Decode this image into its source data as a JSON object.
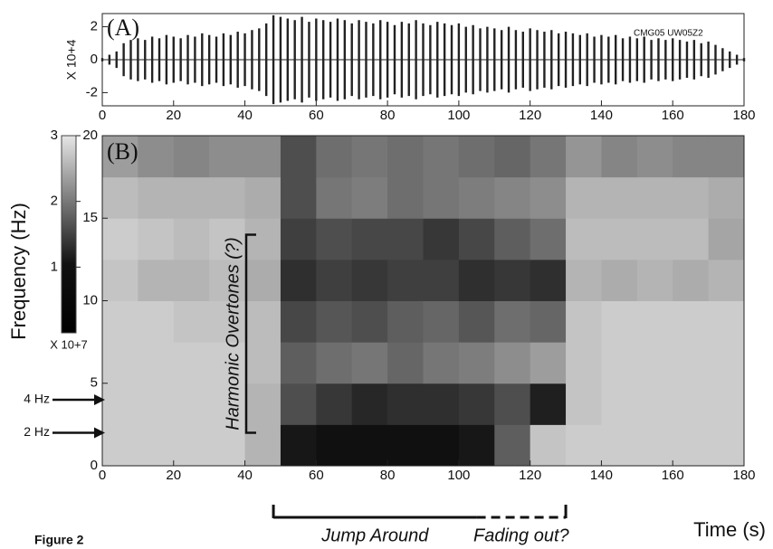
{
  "figure_label": "Figure 2",
  "chart_data": [
    {
      "type": "waveform",
      "panel_label": "(A)",
      "station": "CMG05  UW05Z2",
      "ylabel": "X 10+4",
      "x": [
        0,
        2,
        4,
        6,
        8,
        10,
        12,
        14,
        16,
        18,
        20,
        22,
        24,
        26,
        28,
        30,
        32,
        34,
        36,
        38,
        40,
        42,
        44,
        46,
        48,
        50,
        52,
        54,
        56,
        58,
        60,
        62,
        64,
        66,
        68,
        70,
        72,
        74,
        76,
        78,
        80,
        82,
        84,
        86,
        88,
        90,
        92,
        94,
        96,
        98,
        100,
        102,
        104,
        106,
        108,
        110,
        112,
        114,
        116,
        118,
        120,
        122,
        124,
        126,
        128,
        130,
        132,
        134,
        136,
        138,
        140,
        142,
        144,
        146,
        148,
        150,
        152,
        154,
        156,
        158,
        160,
        162,
        164,
        166,
        168,
        170,
        172,
        174,
        176,
        178,
        180
      ],
      "values": [
        0.1,
        0.3,
        0.5,
        1.0,
        1.2,
        1.3,
        1.2,
        1.4,
        1.3,
        1.5,
        1.4,
        1.3,
        1.5,
        1.4,
        1.6,
        1.5,
        1.4,
        1.6,
        1.5,
        1.7,
        1.6,
        1.8,
        1.9,
        2.2,
        2.7,
        2.6,
        2.5,
        2.4,
        2.6,
        2.3,
        2.5,
        2.4,
        2.3,
        2.5,
        2.4,
        2.2,
        2.4,
        2.3,
        2.2,
        2.4,
        2.3,
        2.1,
        2.3,
        2.2,
        2.4,
        2.2,
        2.1,
        2.3,
        2.2,
        2.1,
        2.2,
        2.0,
        2.1,
        1.9,
        2.0,
        1.9,
        1.8,
        2.0,
        1.8,
        1.7,
        1.9,
        1.8,
        1.7,
        1.8,
        1.6,
        1.7,
        1.6,
        1.5,
        1.6,
        1.4,
        1.5,
        1.4,
        1.5,
        1.3,
        1.4,
        1.3,
        1.4,
        1.2,
        1.3,
        1.2,
        1.3,
        1.2,
        1.1,
        1.2,
        1.0,
        1.1,
        0.9,
        0.7,
        0.5,
        0.3,
        0.1
      ],
      "color": "#222222",
      "xlim": [
        0,
        180
      ],
      "xticks": [
        0,
        20,
        40,
        60,
        80,
        100,
        120,
        140,
        160,
        180
      ],
      "ylim": [
        -2.8,
        2.8
      ],
      "yticks": [
        -2,
        0,
        2
      ]
    },
    {
      "type": "heatmap",
      "panel_label": "(B)",
      "xlabel": "Time (s)",
      "ylabel": "Frequency (Hz)",
      "x_bins": [
        0,
        10,
        20,
        30,
        40,
        50,
        60,
        70,
        80,
        90,
        100,
        110,
        120,
        130,
        140,
        150,
        160,
        170,
        180
      ],
      "y_bins": [
        0,
        2.5,
        5,
        7.5,
        10,
        12.5,
        15,
        17.5,
        20
      ],
      "z": [
        [
          2.6,
          2.6,
          2.6,
          2.6,
          2.3,
          0.3,
          0.2,
          0.2,
          0.2,
          0.2,
          0.3,
          1.2,
          2.5,
          2.6,
          2.6,
          2.6,
          2.6,
          2.6
        ],
        [
          2.6,
          2.6,
          2.6,
          2.6,
          2.3,
          1.0,
          0.7,
          0.5,
          0.6,
          0.6,
          0.7,
          1.0,
          0.4,
          2.5,
          2.6,
          2.6,
          2.6,
          2.6
        ],
        [
          2.6,
          2.6,
          2.6,
          2.6,
          2.4,
          1.2,
          1.4,
          1.5,
          1.3,
          1.5,
          1.6,
          1.8,
          2.0,
          2.5,
          2.6,
          2.6,
          2.6,
          2.6
        ],
        [
          2.6,
          2.6,
          2.5,
          2.5,
          2.4,
          0.9,
          1.1,
          1.0,
          1.2,
          1.3,
          1.1,
          1.4,
          1.3,
          2.5,
          2.6,
          2.6,
          2.6,
          2.6
        ],
        [
          2.5,
          2.3,
          2.3,
          2.4,
          2.2,
          0.6,
          0.8,
          0.7,
          0.8,
          0.8,
          0.6,
          0.7,
          0.6,
          2.3,
          2.2,
          2.3,
          2.2,
          2.3
        ],
        [
          2.6,
          2.5,
          2.4,
          2.5,
          2.3,
          0.8,
          1.0,
          0.9,
          0.9,
          0.7,
          0.9,
          1.2,
          1.4,
          2.4,
          2.4,
          2.4,
          2.4,
          2.1
        ],
        [
          2.4,
          2.3,
          2.3,
          2.3,
          2.2,
          1.0,
          1.5,
          1.6,
          1.4,
          1.5,
          1.6,
          1.7,
          1.8,
          2.3,
          2.3,
          2.3,
          2.3,
          2.2
        ],
        [
          2.0,
          1.8,
          1.7,
          1.8,
          1.8,
          1.0,
          1.4,
          1.5,
          1.4,
          1.5,
          1.4,
          1.3,
          1.5,
          1.9,
          1.7,
          1.8,
          1.7,
          1.7
        ]
      ],
      "xlim": [
        0,
        180
      ],
      "xticks": [
        0,
        20,
        40,
        60,
        80,
        100,
        120,
        140,
        160,
        180
      ],
      "ylim": [
        0,
        20
      ],
      "yticks": [
        0,
        5,
        10,
        15,
        20
      ],
      "colorbar": {
        "lim": [
          0,
          3
        ],
        "ticks": [
          1,
          2,
          3
        ],
        "label": "X 10+7"
      },
      "annotations": [
        {
          "text": "Harmonic Overtones (?)",
          "y": [
            2,
            14
          ]
        },
        {
          "text": "4 Hz",
          "y": 4
        },
        {
          "text": "2 Hz",
          "y": 2
        },
        {
          "text": "Jump Around",
          "x": [
            48,
            105
          ]
        },
        {
          "text": "Fading out?",
          "x": [
            105,
            130
          ]
        }
      ]
    }
  ]
}
